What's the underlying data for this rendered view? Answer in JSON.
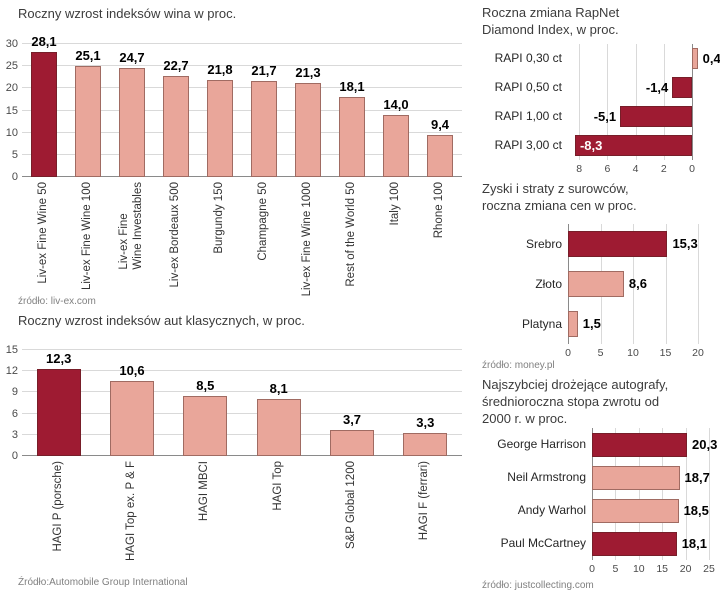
{
  "palette": {
    "dark": "#9e1b32",
    "light": "#e9a69a",
    "grid": "#d9d9d9",
    "axis_line": "#8a8a8a"
  },
  "chart_data": [
    {
      "id": "wine",
      "type": "bar",
      "orientation": "vertical",
      "title": "Roczny wzrost indeksów wina w proc.",
      "source": "źródło: liv-ex.com",
      "categories": [
        "Liv-ex Fine Wine 50",
        "Liv-ex Fine Wine 100",
        "Liv-ex Fine\nWine Investables",
        "Liv-ex Bordeaux 500",
        "Burgundy 150",
        "Champagne 50",
        "Liv-ex Fine Wine 1000",
        "Rest of the World 50",
        "Italy 100",
        "Rhone 100"
      ],
      "values": [
        28.1,
        25.1,
        24.7,
        22.7,
        21.8,
        21.7,
        21.3,
        18.1,
        14.0,
        9.4
      ],
      "value_labels": [
        "28,1",
        "25,1",
        "24,7",
        "22,7",
        "21,8",
        "21,7",
        "21,3",
        "18,1",
        "14,0",
        "9,4"
      ],
      "bar_colors": [
        "dark",
        "light",
        "light",
        "light",
        "light",
        "light",
        "light",
        "light",
        "light",
        "light"
      ],
      "ylim": [
        0,
        30
      ],
      "yticks": [
        0,
        5,
        10,
        15,
        20,
        25,
        30
      ],
      "grid": true,
      "legend": "none"
    },
    {
      "id": "cars",
      "type": "bar",
      "orientation": "vertical",
      "title": "Roczny wzrost indeksów aut klasycznych, w proc.",
      "source": "Źródło:Automobile Group International",
      "categories": [
        "HAGI P (porsche)",
        "HAGI Top ex. P & F",
        "HAGI MBCI",
        "HAGI Top",
        "S&P Global 1200",
        "HAGI F (ferrari)"
      ],
      "values": [
        12.3,
        10.6,
        8.5,
        8.1,
        3.7,
        3.3
      ],
      "value_labels": [
        "12,3",
        "10,6",
        "8,5",
        "8,1",
        "3,7",
        "3,3"
      ],
      "bar_colors": [
        "dark",
        "light",
        "light",
        "light",
        "light",
        "light"
      ],
      "ylim": [
        0,
        15
      ],
      "yticks": [
        0,
        3,
        6,
        9,
        12,
        15
      ],
      "grid": true,
      "legend": "none"
    },
    {
      "id": "diamond",
      "type": "bar",
      "orientation": "horizontal",
      "title": "Roczna zmiana RapNet\nDiamond Index, w proc.",
      "categories": [
        "RAPI 0,30 ct",
        "RAPI 0,50 ct",
        "RAPI 1,00 ct",
        "RAPI 3,00 ct"
      ],
      "values": [
        0.4,
        -1.4,
        -5.1,
        -8.3
      ],
      "value_labels": [
        "0,4",
        "-1,4",
        "-5,1",
        "-8,3"
      ],
      "bar_colors": [
        "light",
        "dark",
        "dark",
        "dark"
      ],
      "xlim": [
        -8.8,
        1.1
      ],
      "xticks": [
        -8,
        -6,
        -4,
        -2,
        0
      ],
      "xtick_labels": [
        "8",
        "6",
        "4",
        "2",
        "0"
      ],
      "grid": true,
      "legend": "none"
    },
    {
      "id": "commodities",
      "type": "bar",
      "orientation": "horizontal",
      "title": "Zyski i straty z surowców,\nroczna zmiana cen w proc.",
      "source": "źródło: money.pl",
      "categories": [
        "Srebro",
        "Złoto",
        "Platyna"
      ],
      "values": [
        15.3,
        8.6,
        1.5
      ],
      "value_labels": [
        "15,3",
        "8,6",
        "1,5"
      ],
      "bar_colors": [
        "dark",
        "light",
        "light"
      ],
      "xlim": [
        0,
        21.5
      ],
      "xticks": [
        0,
        5,
        10,
        15,
        20
      ],
      "xtick_labels": [
        "0",
        "5",
        "10",
        "15",
        "20"
      ],
      "grid": true,
      "legend": "none"
    },
    {
      "id": "autographs",
      "type": "bar",
      "orientation": "horizontal",
      "title": "Najszybciej drożejące autografy,\nśrednioroczna stopa zwrotu od\n2000 r. w proc.",
      "source": "źródło: justcollecting.com",
      "categories": [
        "George Harrison",
        "Neil Armstrong",
        "Andy Warhol",
        "Paul McCartney"
      ],
      "values": [
        20.3,
        18.7,
        18.5,
        18.1
      ],
      "value_labels": [
        "20,3",
        "18,7",
        "18,5",
        "18,1"
      ],
      "bar_colors": [
        "dark",
        "light",
        "light",
        "dark"
      ],
      "xlim": [
        0,
        25.5
      ],
      "xticks": [
        0,
        5,
        10,
        15,
        20,
        25
      ],
      "xtick_labels": [
        "0",
        "5",
        "10",
        "15",
        "20",
        "25"
      ],
      "grid": true,
      "legend": "none"
    }
  ]
}
